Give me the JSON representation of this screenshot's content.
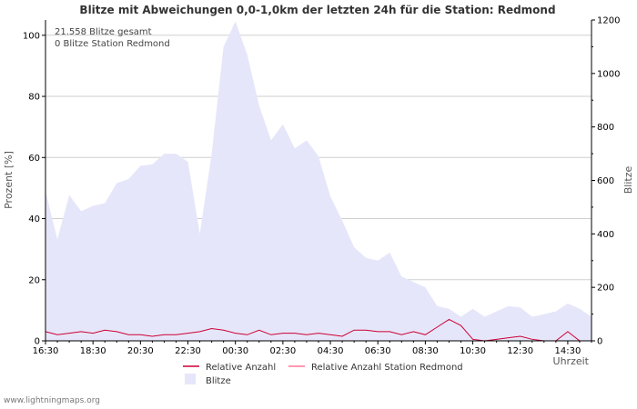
{
  "chart_data": {
    "type": "area",
    "title": "Blitze mit Abweichungen 0,0-1,0km der letzten 24h für die Station: Redmond",
    "xlabel": "Uhrzeit",
    "ylabel_left": "Prozent   [%]",
    "ylabel_right": "Blitze",
    "ylim_left": [
      0,
      105
    ],
    "ylim_right": [
      0,
      1200
    ],
    "yticks_left": [
      0,
      20,
      40,
      60,
      80,
      100
    ],
    "yticks_right": [
      0,
      200,
      400,
      600,
      800,
      1000,
      1200
    ],
    "x_start": "16:30",
    "x_step_minutes": 30,
    "x_tick_labels": [
      "16:30",
      "18:30",
      "20:30",
      "22:30",
      "00:30",
      "02:30",
      "04:30",
      "06:30",
      "08:30",
      "10:30",
      "12:30",
      "14:30"
    ],
    "annotations": [
      "21.558 Blitze gesamt",
      "0 Blitze Station Redmond"
    ],
    "series": [
      {
        "name": "Blitze",
        "axis": "right",
        "style": "area",
        "color": "#e6e6fa",
        "values": [
          560,
          380,
          545,
          485,
          505,
          515,
          590,
          605,
          655,
          660,
          700,
          700,
          670,
          400,
          700,
          1100,
          1195,
          1070,
          880,
          750,
          810,
          720,
          750,
          690,
          540,
          450,
          350,
          310,
          300,
          330,
          240,
          220,
          200,
          130,
          120,
          90,
          120,
          90,
          110,
          130,
          125,
          90,
          100,
          110,
          140,
          120,
          90
        ]
      },
      {
        "name": "Relative Anzahl",
        "axis": "left",
        "style": "line",
        "color": "#cc0033",
        "values": [
          3,
          2,
          2.5,
          3,
          2.5,
          3.5,
          3,
          2,
          2,
          1.5,
          2,
          2,
          2.5,
          3,
          4,
          3.5,
          2.5,
          2,
          3.5,
          2,
          2.5,
          2.5,
          2,
          2.5,
          2,
          1.5,
          3.5,
          3.5,
          3,
          3,
          2,
          3,
          2,
          4.5,
          7,
          5,
          0.5,
          0,
          0.5,
          1,
          1.5,
          0.5,
          0,
          0,
          3,
          0,
          0
        ]
      },
      {
        "name": "Relative Anzahl Station Redmond",
        "axis": "left",
        "style": "line",
        "color": "#ff7799",
        "values": [
          0,
          0,
          0,
          0,
          0,
          0,
          0,
          0,
          0,
          0,
          0,
          0,
          0,
          0,
          0,
          0,
          0,
          0,
          0,
          0,
          0,
          0,
          0,
          0,
          0,
          0,
          0,
          0,
          0,
          0,
          0,
          0,
          0,
          0,
          0,
          0,
          0,
          0,
          0,
          0,
          0,
          0,
          0,
          0,
          0,
          0,
          0
        ]
      }
    ],
    "legend": [
      {
        "label": "Relative Anzahl",
        "symbol": "line",
        "color": "#cc0033"
      },
      {
        "label": "Relative Anzahl Station Redmond",
        "symbol": "line",
        "color": "#ff7799"
      },
      {
        "label": "Blitze",
        "symbol": "area",
        "color": "#e6e6fa"
      }
    ],
    "legend_position": "bottom",
    "grid": true
  },
  "footer": "www.lightningmaps.org"
}
